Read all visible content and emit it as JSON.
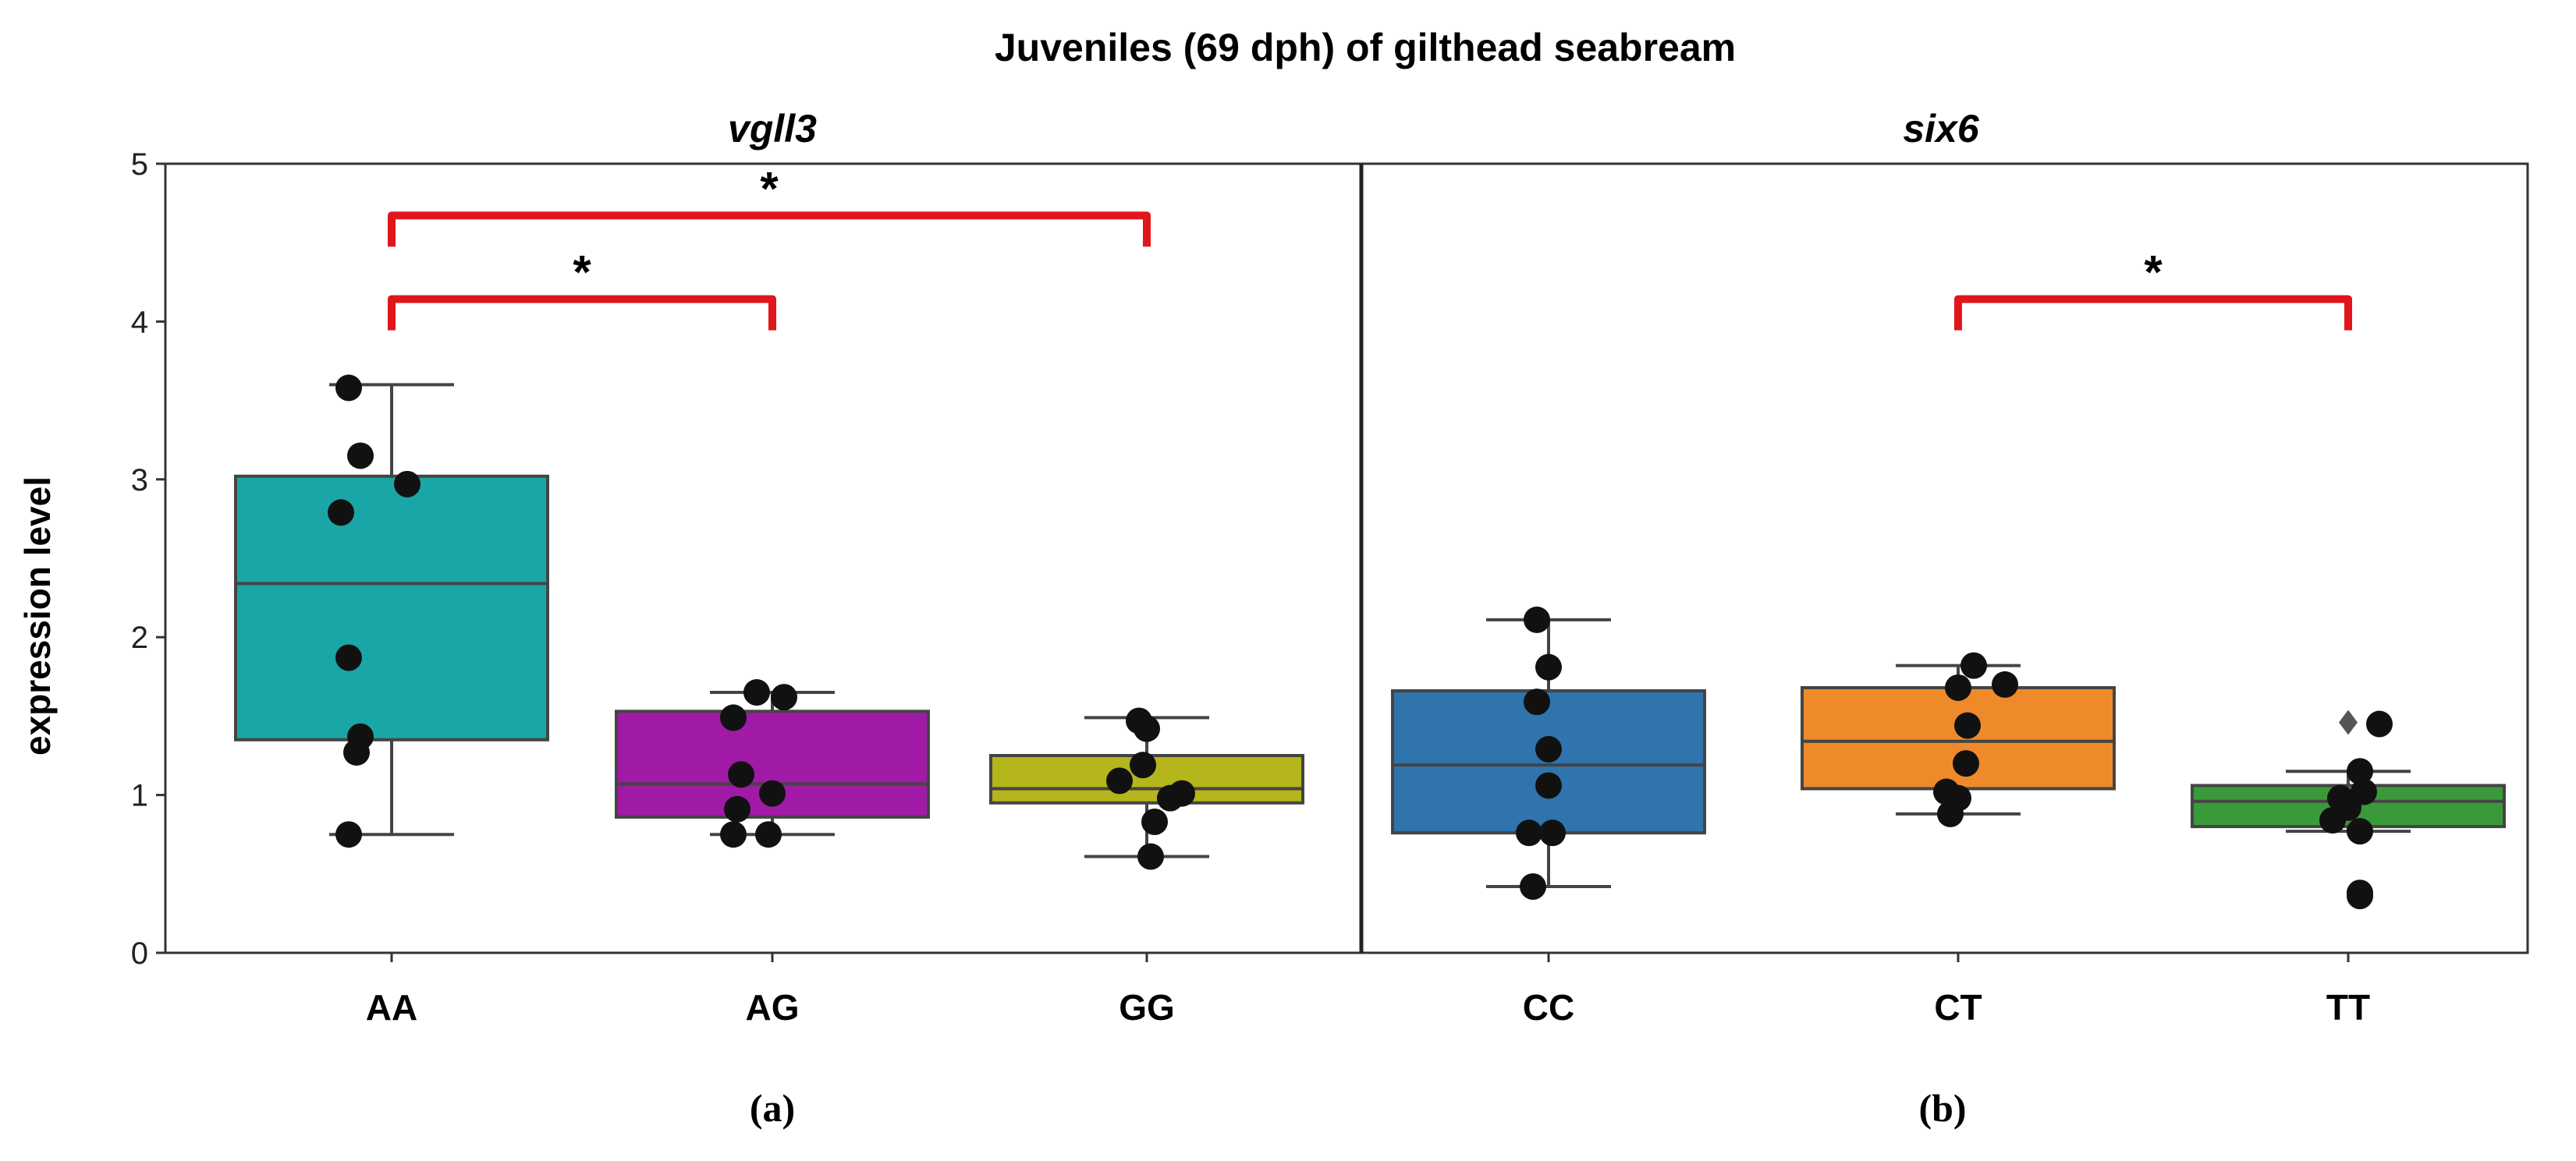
{
  "chart_data": {
    "type": "box",
    "title": "Juveniles (69 dph) of gilthead seabream",
    "ylabel": "expression level",
    "ylim": [
      0,
      5
    ],
    "yticks": [
      "0",
      "1",
      "2",
      "3",
      "4",
      "5"
    ],
    "panels": [
      {
        "id": "a",
        "label": "(a)",
        "title": "vgll3",
        "categories": [
          "AA",
          "AG",
          "GG"
        ],
        "boxes": [
          {
            "category": "AA",
            "color": "#1aa6a6",
            "whisker_low": 0.75,
            "q1": 1.35,
            "median": 2.34,
            "q3": 3.02,
            "whisker_high": 3.6,
            "points": [
              3.58,
              3.15,
              2.97,
              2.79,
              1.87,
              1.37,
              1.27,
              0.75
            ]
          },
          {
            "category": "AG",
            "color": "#a01aa6",
            "whisker_low": 0.75,
            "q1": 0.86,
            "median": 1.07,
            "q3": 1.53,
            "whisker_high": 1.65,
            "points": [
              1.65,
              1.62,
              1.49,
              1.13,
              1.01,
              0.91,
              0.75,
              0.75
            ]
          },
          {
            "category": "GG",
            "color": "#b5b51c",
            "whisker_low": 0.61,
            "q1": 0.95,
            "median": 1.04,
            "q3": 1.25,
            "whisker_high": 1.49,
            "points": [
              1.47,
              1.42,
              1.19,
              1.09,
              1.01,
              0.98,
              0.83,
              0.61
            ]
          }
        ],
        "significance": [
          {
            "from": "AA",
            "to": "AG",
            "level": 3.92,
            "label": "*"
          },
          {
            "from": "AA",
            "to": "GG",
            "level": 4.45,
            "label": "*"
          }
        ]
      },
      {
        "id": "b",
        "label": "(b)",
        "title": "six6",
        "categories": [
          "CC",
          "CT",
          "TT"
        ],
        "boxes": [
          {
            "category": "CC",
            "color": "#2f74ad",
            "whisker_low": 0.42,
            "q1": 0.76,
            "median": 1.19,
            "q3": 1.66,
            "whisker_high": 2.11,
            "points": [
              2.11,
              1.81,
              1.59,
              1.29,
              1.06,
              0.76,
              0.76,
              0.42
            ]
          },
          {
            "category": "CT",
            "color": "#ee8a2a",
            "whisker_low": 0.88,
            "q1": 1.04,
            "median": 1.34,
            "q3": 1.68,
            "whisker_high": 1.82,
            "points": [
              1.82,
              1.7,
              1.68,
              1.44,
              1.2,
              1.02,
              0.98,
              0.88
            ]
          },
          {
            "category": "TT",
            "color": "#3a9a3a",
            "whisker_low": 0.77,
            "q1": 0.8,
            "median": 0.96,
            "q3": 1.06,
            "whisker_high": 1.15,
            "outliers": [
              1.46
            ],
            "points": [
              1.45,
              1.15,
              1.02,
              0.98,
              0.92,
              0.84,
              0.77,
              0.38,
              0.36
            ]
          }
        ],
        "significance": [
          {
            "from": "CT",
            "to": "TT",
            "level": 3.92,
            "label": "*"
          }
        ]
      }
    ],
    "significance_color": "#e0161b"
  }
}
